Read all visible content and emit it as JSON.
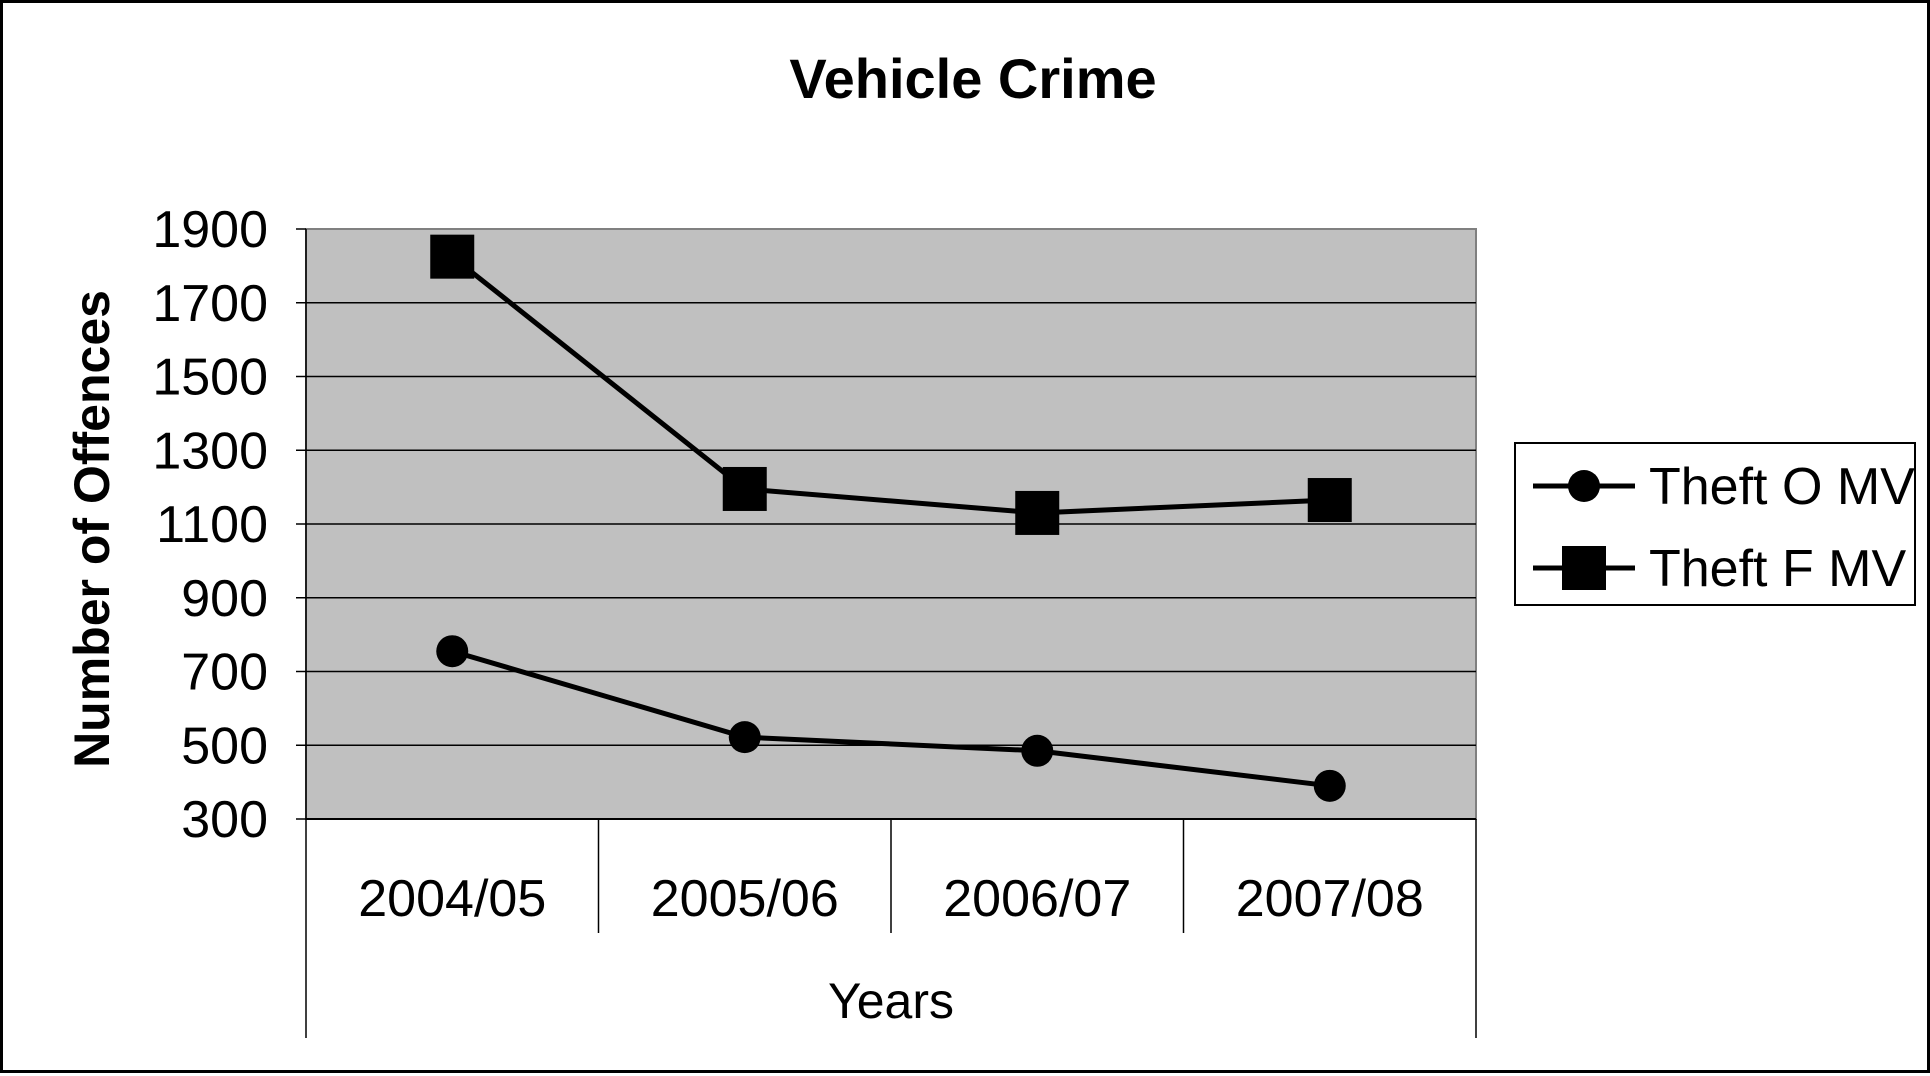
{
  "chart_data": {
    "type": "line",
    "title": "Vehicle Crime",
    "xlabel": "Years",
    "ylabel": "Number of Offences",
    "categories": [
      "2004/05",
      "2005/06",
      "2006/07",
      "2007/08"
    ],
    "ylim": [
      300,
      1900
    ],
    "yticks": [
      300,
      500,
      700,
      900,
      1100,
      1300,
      1500,
      1700,
      1900
    ],
    "grid": true,
    "legend_position": "right",
    "plot_background": "#c0c0c0",
    "series": [
      {
        "name": "Theft O MV",
        "marker": "circle",
        "color": "#000000",
        "values": [
          755,
          522,
          485,
          390
        ]
      },
      {
        "name": "Theft F MV",
        "marker": "square",
        "color": "#000000",
        "values": [
          1825,
          1195,
          1130,
          1165
        ]
      }
    ]
  }
}
